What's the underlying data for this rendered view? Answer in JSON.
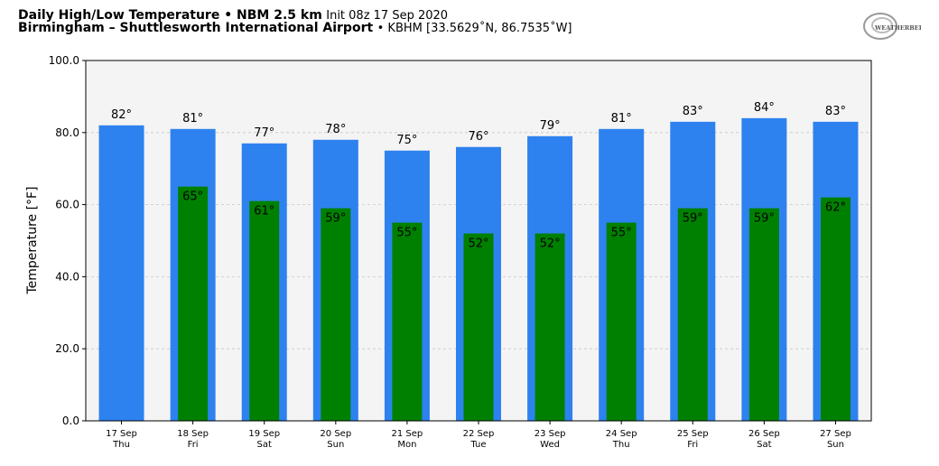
{
  "header": {
    "title_bold": "Daily High/Low Temperature • NBM 2.5 km",
    "title_init": "Init 08z 17 Sep 2020",
    "location_bold": "Birmingham – Shuttlesworth International Airport",
    "location_info": "• KBHM [33.5629˚N, 86.7535˚W]"
  },
  "logo": {
    "text": "WEATHERBELL",
    "icon": "weatherbell-logo"
  },
  "colors": {
    "high": "#2d82ef",
    "low": "#008000",
    "plot_bg": "#f4f4f4"
  },
  "chart_data": {
    "type": "bar",
    "ylabel": "Temperature [°F]",
    "ylim": [
      0,
      100
    ],
    "yticks": [
      "0.0",
      "20.0",
      "40.0",
      "60.0",
      "80.0",
      "100.0"
    ],
    "grid": true,
    "categories": [
      {
        "date": "17 Sep",
        "day": "Thu"
      },
      {
        "date": "18 Sep",
        "day": "Fri"
      },
      {
        "date": "19 Sep",
        "day": "Sat"
      },
      {
        "date": "20 Sep",
        "day": "Sun"
      },
      {
        "date": "21 Sep",
        "day": "Mon"
      },
      {
        "date": "22 Sep",
        "day": "Tue"
      },
      {
        "date": "23 Sep",
        "day": "Wed"
      },
      {
        "date": "24 Sep",
        "day": "Thu"
      },
      {
        "date": "25 Sep",
        "day": "Fri"
      },
      {
        "date": "26 Sep",
        "day": "Sat"
      },
      {
        "date": "27 Sep",
        "day": "Sun"
      }
    ],
    "series": [
      {
        "values": [
          82,
          81,
          77,
          78,
          75,
          76,
          79,
          81,
          83,
          84,
          83
        ],
        "labels": [
          "82°",
          "81°",
          "77°",
          "78°",
          "75°",
          "76°",
          "79°",
          "81°",
          "83°",
          "84°",
          "83°"
        ]
      },
      {
        "values": [
          null,
          65,
          61,
          59,
          55,
          52,
          52,
          55,
          59,
          59,
          62
        ],
        "labels": [
          "",
          "65°",
          "61°",
          "59°",
          "55°",
          "52°",
          "52°",
          "55°",
          "59°",
          "59°",
          "62°"
        ]
      }
    ]
  }
}
